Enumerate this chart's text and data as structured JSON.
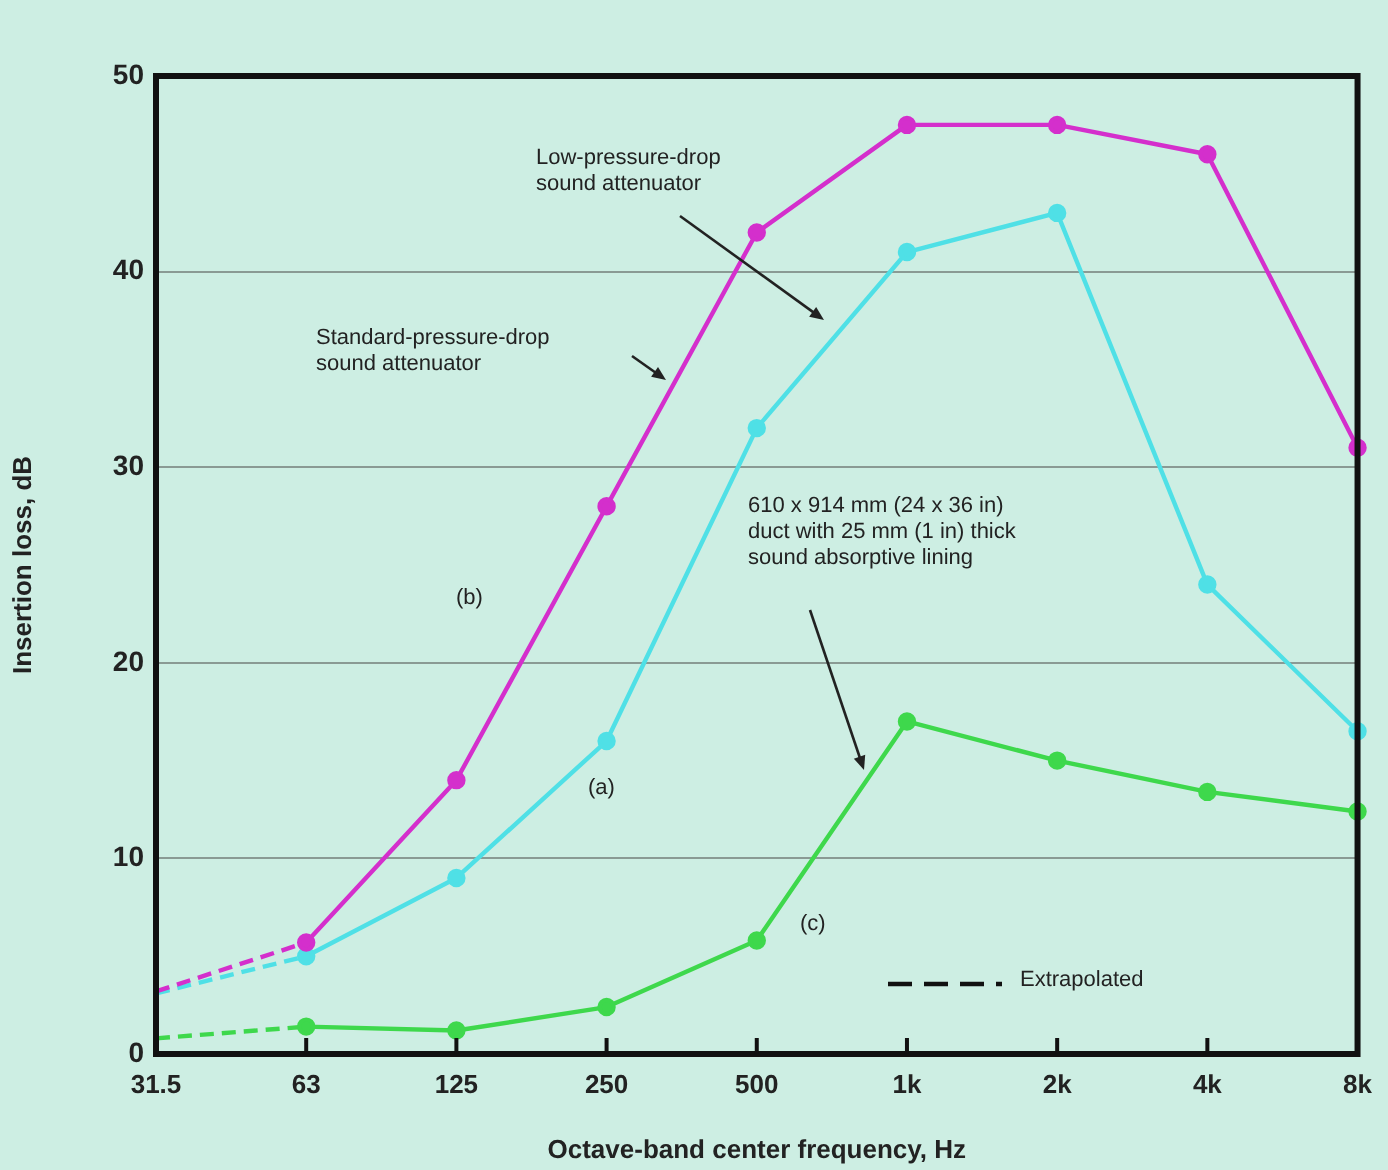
{
  "chart_data": {
    "type": "line",
    "xlabel": "Octave-band center frequency, Hz",
    "ylabel": "Insertion loss, dB",
    "categories": [
      "31.5",
      "63",
      "125",
      "250",
      "500",
      "1k",
      "2k",
      "4k",
      "8k"
    ],
    "ylim": [
      0,
      50
    ],
    "yticks": [
      0,
      10,
      20,
      30,
      40,
      50
    ],
    "grid": "y",
    "annotations": [
      "Low-pressure-drop\nsound attenuator",
      "Standard-pressure-drop\nsound attenuator",
      "610 x 914 mm (24 x 36 in)\nduct with 25 mm (1 in) thick\nsound absorptive lining",
      "(b)",
      "(a)",
      "(c)",
      "Extrapolated"
    ],
    "series": [
      {
        "color": "#d42fcc",
        "values": [
          null,
          5.7,
          14,
          28,
          42,
          47.5,
          47.5,
          46,
          31
        ],
        "marker": "circle",
        "line_style": "solid"
      },
      {
        "color": "#4fe0e6",
        "values": [
          null,
          5,
          9,
          16,
          32,
          41,
          43,
          24,
          16.5
        ],
        "marker": "circle",
        "line_style": "solid"
      },
      {
        "color": "#3ed84c",
        "values": [
          null,
          1.4,
          1.2,
          2.4,
          5.8,
          17,
          15,
          13.4,
          12.4
        ],
        "marker": "circle",
        "line_style": "solid"
      },
      {
        "color": "#d42fcc",
        "values": [
          3.2,
          5.7,
          null,
          null,
          null,
          null,
          null,
          null,
          null
        ],
        "marker": "none",
        "line_style": "dashed"
      },
      {
        "color": "#4fe0e6",
        "values": [
          3.1,
          5,
          null,
          null,
          null,
          null,
          null,
          null,
          null
        ],
        "marker": "none",
        "line_style": "dashed"
      },
      {
        "color": "#3ed84c",
        "values": [
          0.8,
          1.4,
          null,
          null,
          null,
          null,
          null,
          null,
          null
        ],
        "marker": "none",
        "line_style": "dashed"
      }
    ]
  }
}
